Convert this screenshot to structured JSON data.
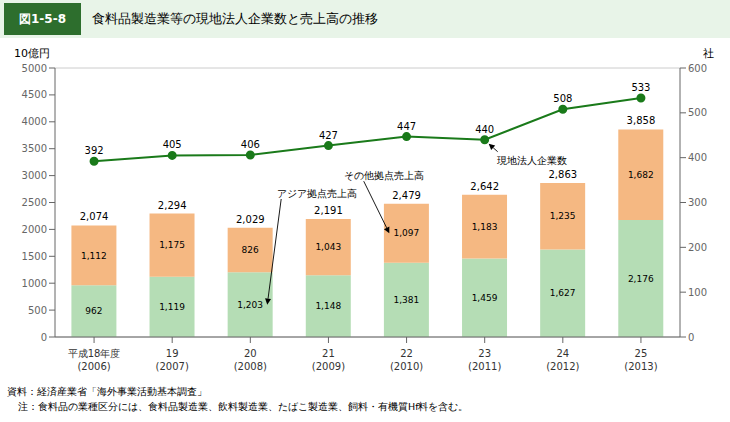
{
  "chart_data": {
    "type": "bar",
    "figure_label": "図1-5-8",
    "title": "食料品製造業等の現地法人企業数と売上高の推移",
    "categories": [
      "平成18年度\n(2006)",
      "19\n(2007)",
      "20\n(2008)",
      "21\n(2009)",
      "22\n(2010)",
      "23\n(2011)",
      "24\n(2012)",
      "25\n(2013)"
    ],
    "series": [
      {
        "name": "アジア拠点売上高",
        "type": "bar",
        "color": "#b5ddb5",
        "values": [
          962,
          1119,
          1203,
          1148,
          1381,
          1459,
          1627,
          2176
        ],
        "value_labels": [
          "962",
          "1,119",
          "1,203",
          "1,148",
          "1,381",
          "1,459",
          "1,627",
          "2,176"
        ]
      },
      {
        "name": "その他拠点売上高",
        "type": "bar",
        "color": "#f5b882",
        "values": [
          1112,
          1175,
          826,
          1043,
          1097,
          1183,
          1235,
          1682
        ],
        "value_labels": [
          "1,112",
          "1,175",
          "826",
          "1,043",
          "1,097",
          "1,183",
          "1,235",
          "1,682"
        ]
      },
      {
        "name": "現地法人企業数",
        "type": "line",
        "axis": "y2",
        "color": "#1a7a1a",
        "marker": "circle",
        "values": [
          392,
          405,
          406,
          427,
          447,
          440,
          508,
          533
        ]
      }
    ],
    "totals": {
      "values": [
        2074,
        2294,
        2029,
        2191,
        2479,
        2642,
        2863,
        3858
      ],
      "value_labels": [
        "2,074",
        "2,294",
        "2,029",
        "2,191",
        "2,479",
        "2,642",
        "2,863",
        "3,858"
      ]
    },
    "stacked": true,
    "data_labels": true,
    "grid": true,
    "ylabel": "10億円",
    "y2label": "社",
    "ylim": [
      0,
      5000
    ],
    "yticks": [
      0,
      500,
      1000,
      1500,
      2000,
      2500,
      3000,
      3500,
      4000,
      4500,
      5000
    ],
    "y2lim": [
      0,
      600
    ],
    "y2ticks": [
      0,
      100,
      200,
      300,
      400,
      500,
      600
    ],
    "source": [
      "資料：経済産業省「海外事業活動基本調査」",
      "注：食料品の業種区分には、食料品製造業、飲料製造業、たばこ製造業、飼料・有機質Hf料を含む。"
    ]
  }
}
